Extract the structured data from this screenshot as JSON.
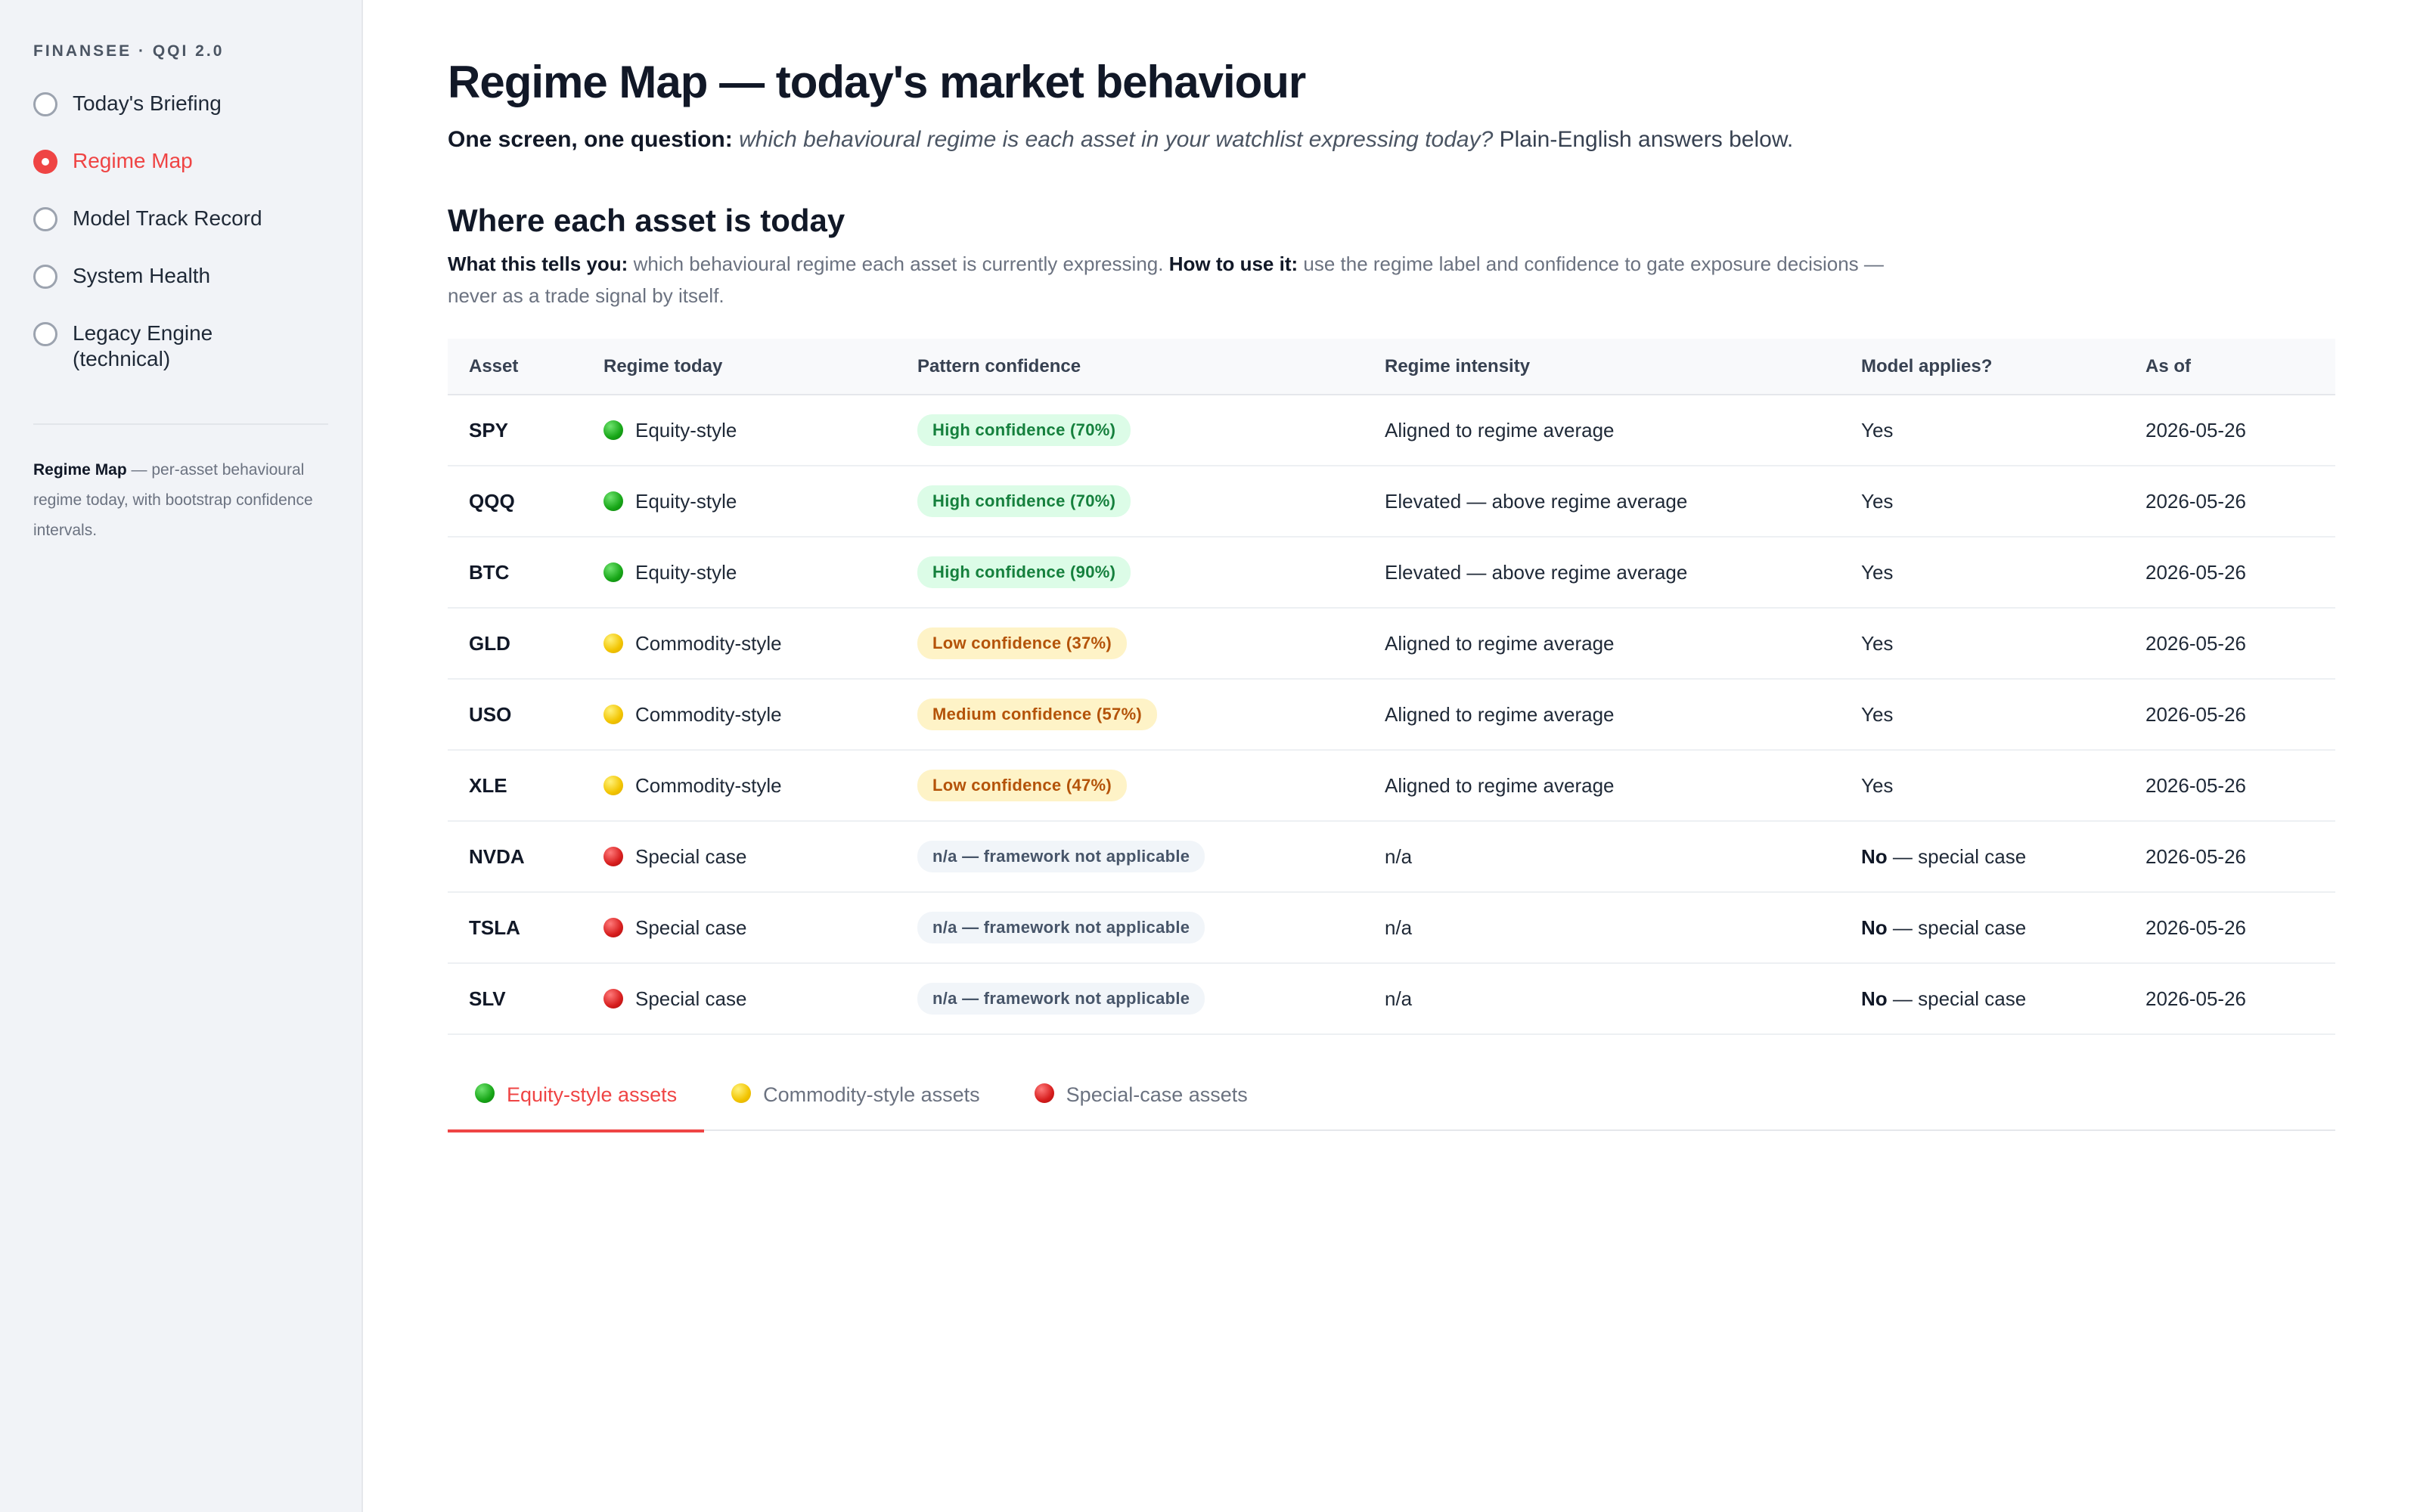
{
  "sidebar": {
    "brand": "FINANSEE · QQI 2.0",
    "items": [
      {
        "label": "Today's Briefing",
        "active": false
      },
      {
        "label": "Regime Map",
        "active": true
      },
      {
        "label": "Model Track Record",
        "active": false
      },
      {
        "label": "System Health",
        "active": false
      },
      {
        "label": "Legacy Engine (technical)",
        "active": false
      }
    ],
    "note_title": "Regime Map",
    "note_text": " — per-asset behavioural regime today, with bootstrap confidence intervals."
  },
  "header": {
    "title": "Regime Map — today's market behaviour",
    "subtitle_bold": "One screen, one question:",
    "subtitle_italic": "which behavioural regime is each asset in your watchlist expressing today?",
    "subtitle_rest": "Plain-English answers below."
  },
  "section": {
    "title": "Where each asset is today",
    "what_label": "What this tells you:",
    "what_text": "which behavioural regime each asset is currently expressing.",
    "how_label": "How to use it:",
    "how_text": "use the regime label and confidence to gate exposure decisions — never as a trade signal by itself."
  },
  "table": {
    "columns": [
      "Asset",
      "Regime today",
      "Pattern confidence",
      "Regime intensity",
      "Model applies?",
      "As of"
    ],
    "rows": [
      {
        "asset": "SPY",
        "regime": "Equity-style",
        "color": "green",
        "confidence": "High confidence (70%)",
        "conf_level": "high",
        "intensity": "Aligned to regime average",
        "applies_bold": "",
        "applies": "Yes",
        "as_of": "2026-05-26"
      },
      {
        "asset": "QQQ",
        "regime": "Equity-style",
        "color": "green",
        "confidence": "High confidence (70%)",
        "conf_level": "high",
        "intensity": "Elevated — above regime average",
        "applies_bold": "",
        "applies": "Yes",
        "as_of": "2026-05-26"
      },
      {
        "asset": "BTC",
        "regime": "Equity-style",
        "color": "green",
        "confidence": "High confidence (90%)",
        "conf_level": "high",
        "intensity": "Elevated — above regime average",
        "applies_bold": "",
        "applies": "Yes",
        "as_of": "2026-05-26"
      },
      {
        "asset": "GLD",
        "regime": "Commodity-style",
        "color": "yellow",
        "confidence": "Low confidence (37%)",
        "conf_level": "low",
        "intensity": "Aligned to regime average",
        "applies_bold": "",
        "applies": "Yes",
        "as_of": "2026-05-26"
      },
      {
        "asset": "USO",
        "regime": "Commodity-style",
        "color": "yellow",
        "confidence": "Medium confidence (57%)",
        "conf_level": "medium",
        "intensity": "Aligned to regime average",
        "applies_bold": "",
        "applies": "Yes",
        "as_of": "2026-05-26"
      },
      {
        "asset": "XLE",
        "regime": "Commodity-style",
        "color": "yellow",
        "confidence": "Low confidence (47%)",
        "conf_level": "low",
        "intensity": "Aligned to regime average",
        "applies_bold": "",
        "applies": "Yes",
        "as_of": "2026-05-26"
      },
      {
        "asset": "NVDA",
        "regime": "Special case",
        "color": "red",
        "confidence": "n/a — framework not applicable",
        "conf_level": "na",
        "intensity": "n/a",
        "applies_bold": "No",
        "applies": " — special case",
        "as_of": "2026-05-26"
      },
      {
        "asset": "TSLA",
        "regime": "Special case",
        "color": "red",
        "confidence": "n/a — framework not applicable",
        "conf_level": "na",
        "intensity": "n/a",
        "applies_bold": "No",
        "applies": " — special case",
        "as_of": "2026-05-26"
      },
      {
        "asset": "SLV",
        "regime": "Special case",
        "color": "red",
        "confidence": "n/a — framework not applicable",
        "conf_level": "na",
        "intensity": "n/a",
        "applies_bold": "No",
        "applies": " — special case",
        "as_of": "2026-05-26"
      }
    ]
  },
  "tabs": [
    {
      "label": "Equity-style assets",
      "color": "green",
      "active": true
    },
    {
      "label": "Commodity-style assets",
      "color": "yellow",
      "active": false
    },
    {
      "label": "Special-case assets",
      "color": "red",
      "active": false
    }
  ],
  "colors": {
    "accent": "#ef4444",
    "green": "#17a617",
    "yellow": "#f2c400",
    "red": "#d71d1d"
  }
}
